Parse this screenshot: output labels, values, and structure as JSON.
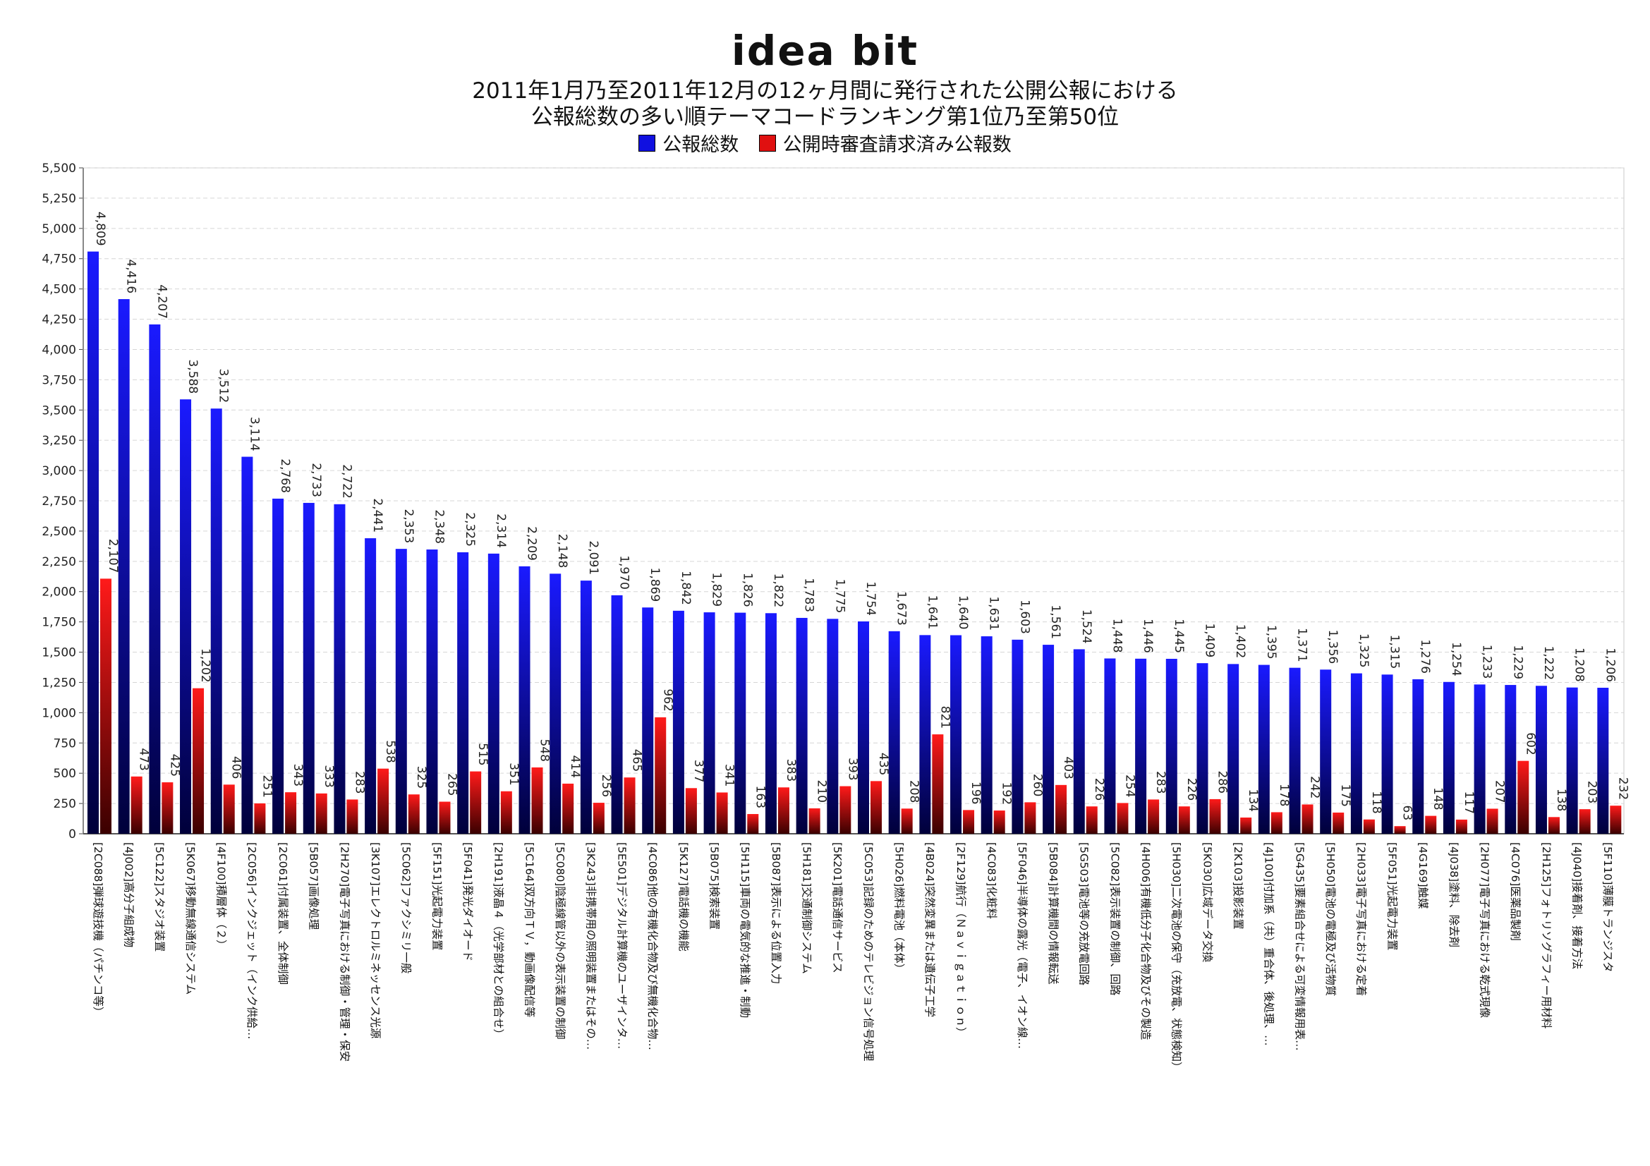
{
  "header": {
    "logo": "idea bit",
    "title_line1": "2011年1月乃至2011年12月の12ヶ月間に発行された公開公報における",
    "title_line2": "公報総数の多い順テーマコードランキング第1位乃至第50位"
  },
  "colors": {
    "series1": "#1010e0",
    "series2": "#e01010"
  },
  "chart_data": {
    "type": "bar",
    "ylim": [
      0,
      5500
    ],
    "ytick_step": 250,
    "grid": true,
    "legend_position": "top-center",
    "series": [
      {
        "name": "公報総数",
        "values": [
          4809,
          4416,
          4207,
          3588,
          3512,
          3114,
          2768,
          2733,
          2722,
          2441,
          2353,
          2348,
          2325,
          2314,
          2209,
          2148,
          2091,
          1970,
          1869,
          1842,
          1829,
          1826,
          1822,
          1783,
          1775,
          1754,
          1673,
          1641,
          1640,
          1631,
          1603,
          1561,
          1524,
          1448,
          1446,
          1445,
          1409,
          1402,
          1395,
          1371,
          1356,
          1325,
          1315,
          1276,
          1254,
          1233,
          1229,
          1222,
          1208,
          1206
        ]
      },
      {
        "name": "公開時審査請求済み公報数",
        "values": [
          2107,
          473,
          425,
          1202,
          406,
          251,
          343,
          333,
          283,
          538,
          325,
          265,
          515,
          351,
          548,
          414,
          256,
          465,
          962,
          377,
          341,
          163,
          383,
          210,
          393,
          435,
          208,
          821,
          196,
          192,
          260,
          403,
          226,
          254,
          283,
          226,
          286,
          134,
          178,
          242,
          175,
          118,
          63,
          148,
          117,
          207,
          602,
          138,
          203,
          232
        ]
      }
    ],
    "categories": [
      "[2C088]弾球遊技機（パチンコ等）",
      "[4J002]高分子組成物",
      "[5C122]スタジオ装置",
      "[5K067]移動無線通信システム",
      "[4F100]積層体（２）",
      "[2C056]インクジェット（インク供給…",
      "[2C061]付属装置、全体制御",
      "[5B057]画像処理",
      "[2H270]電子写真における制御・管理・保安",
      "[3K107]エレクトロルミネッセンス光源",
      "[5C062]ファクシミリ一般",
      "[5F151]光起電力装置",
      "[5F041]発光ダイオード",
      "[2H191]液晶４（光学部材との組合せ）",
      "[5C164]双方向ＴＶ，動画像配信等",
      "[5C080]陰極線管以外の表示装置の制御",
      "[3K243]非携帯用の照明装置またはその…",
      "[5E501]デジタル計算機のユーザインタ…",
      "[4C086]他の有機化合物及び無機化合物…",
      "[5K127]電話機の機能",
      "[5B075]検索装置",
      "[5H115]車両の電気的な推進・制動",
      "[5B087]表示による位置入力",
      "[5H181]交通制御システム",
      "[5K201]電話通信サービス",
      "[5C053]記録のためのテレビジョン信号処理",
      "[5H026]燃料電池（本体）",
      "[4B024]突然変異または遺伝子工学",
      "[2F129]航行（Ｎａｖｉｇａｔｉｏｎ）",
      "[4C083]化粧料",
      "[5F046]半導体の露光（電子、イオン線…",
      "[5B084]計算機間の情報転送",
      "[5G503]電池等の充放電回路",
      "[5C082]表示装置の制御、回路",
      "[4H006]有機低分子化合物及びその製造",
      "[5H030]二次電池の保守（充放電、状態検知）",
      "[5K030]広域データ交換",
      "[2K103]投影装置",
      "[4J100]付加系（共）重合体、後処理、…",
      "[5G435]要素組合せによる可変情報用表…",
      "[5H050]電池の電極及び活物質",
      "[2H033]電子写真における定着",
      "[5F051]光起電力装置",
      "[4G169]触媒",
      "[4J038]塗料、除去剤",
      "[2H077]電子写真における乾式現像",
      "[4C076]医薬品製剤",
      "[2H125]フォトリソグラフィー用材料",
      "[4J040]接着剤、接着方法",
      "[5F110]薄膜トランジスタ"
    ]
  }
}
